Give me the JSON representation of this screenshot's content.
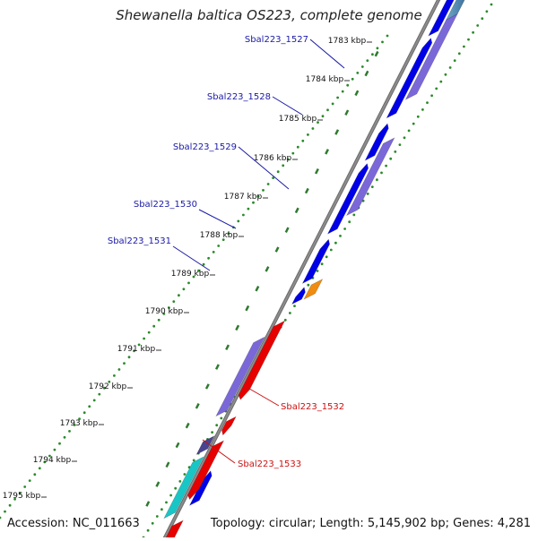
{
  "title": "Shewanella baltica OS223, complete genome",
  "footer": {
    "accession": "Accession: NC_011663",
    "summary": "Topology: circular; Length: 5,145,902 bp; Genes: 4,281"
  },
  "kbp_labels": [
    "1783 kbp",
    "1784 kbp",
    "1785 kbp",
    "1786 kbp",
    "1787 kbp",
    "1788 kbp",
    "1789 kbp",
    "1790 kbp",
    "1791 kbp",
    "1792 kbp",
    "1793 kbp",
    "1794 kbp",
    "1795 kbp"
  ],
  "genes": [
    {
      "name": "Sbal223_1527",
      "strand": "forward"
    },
    {
      "name": "Sbal223_1528",
      "strand": "forward"
    },
    {
      "name": "Sbal223_1529",
      "strand": "forward"
    },
    {
      "name": "Sbal223_1530",
      "strand": "forward"
    },
    {
      "name": "Sbal223_1531",
      "strand": "forward"
    },
    {
      "name": "Sbal223_1532",
      "strand": "reverse"
    },
    {
      "name": "Sbal223_1533",
      "strand": "reverse"
    }
  ],
  "colors": {
    "backbone": "#8c8c8c",
    "forward_label": "#1a1aa6",
    "reverse_label": "#cc1111",
    "cds_blue": "#0000e6",
    "cds_red": "#e60000",
    "cds_purple": "#7b68d8",
    "cds_cyan": "#19c6c6",
    "cds_orange": "#f08c10",
    "cds_navy": "#4a4490",
    "dots_green": "#2a8a2a"
  }
}
